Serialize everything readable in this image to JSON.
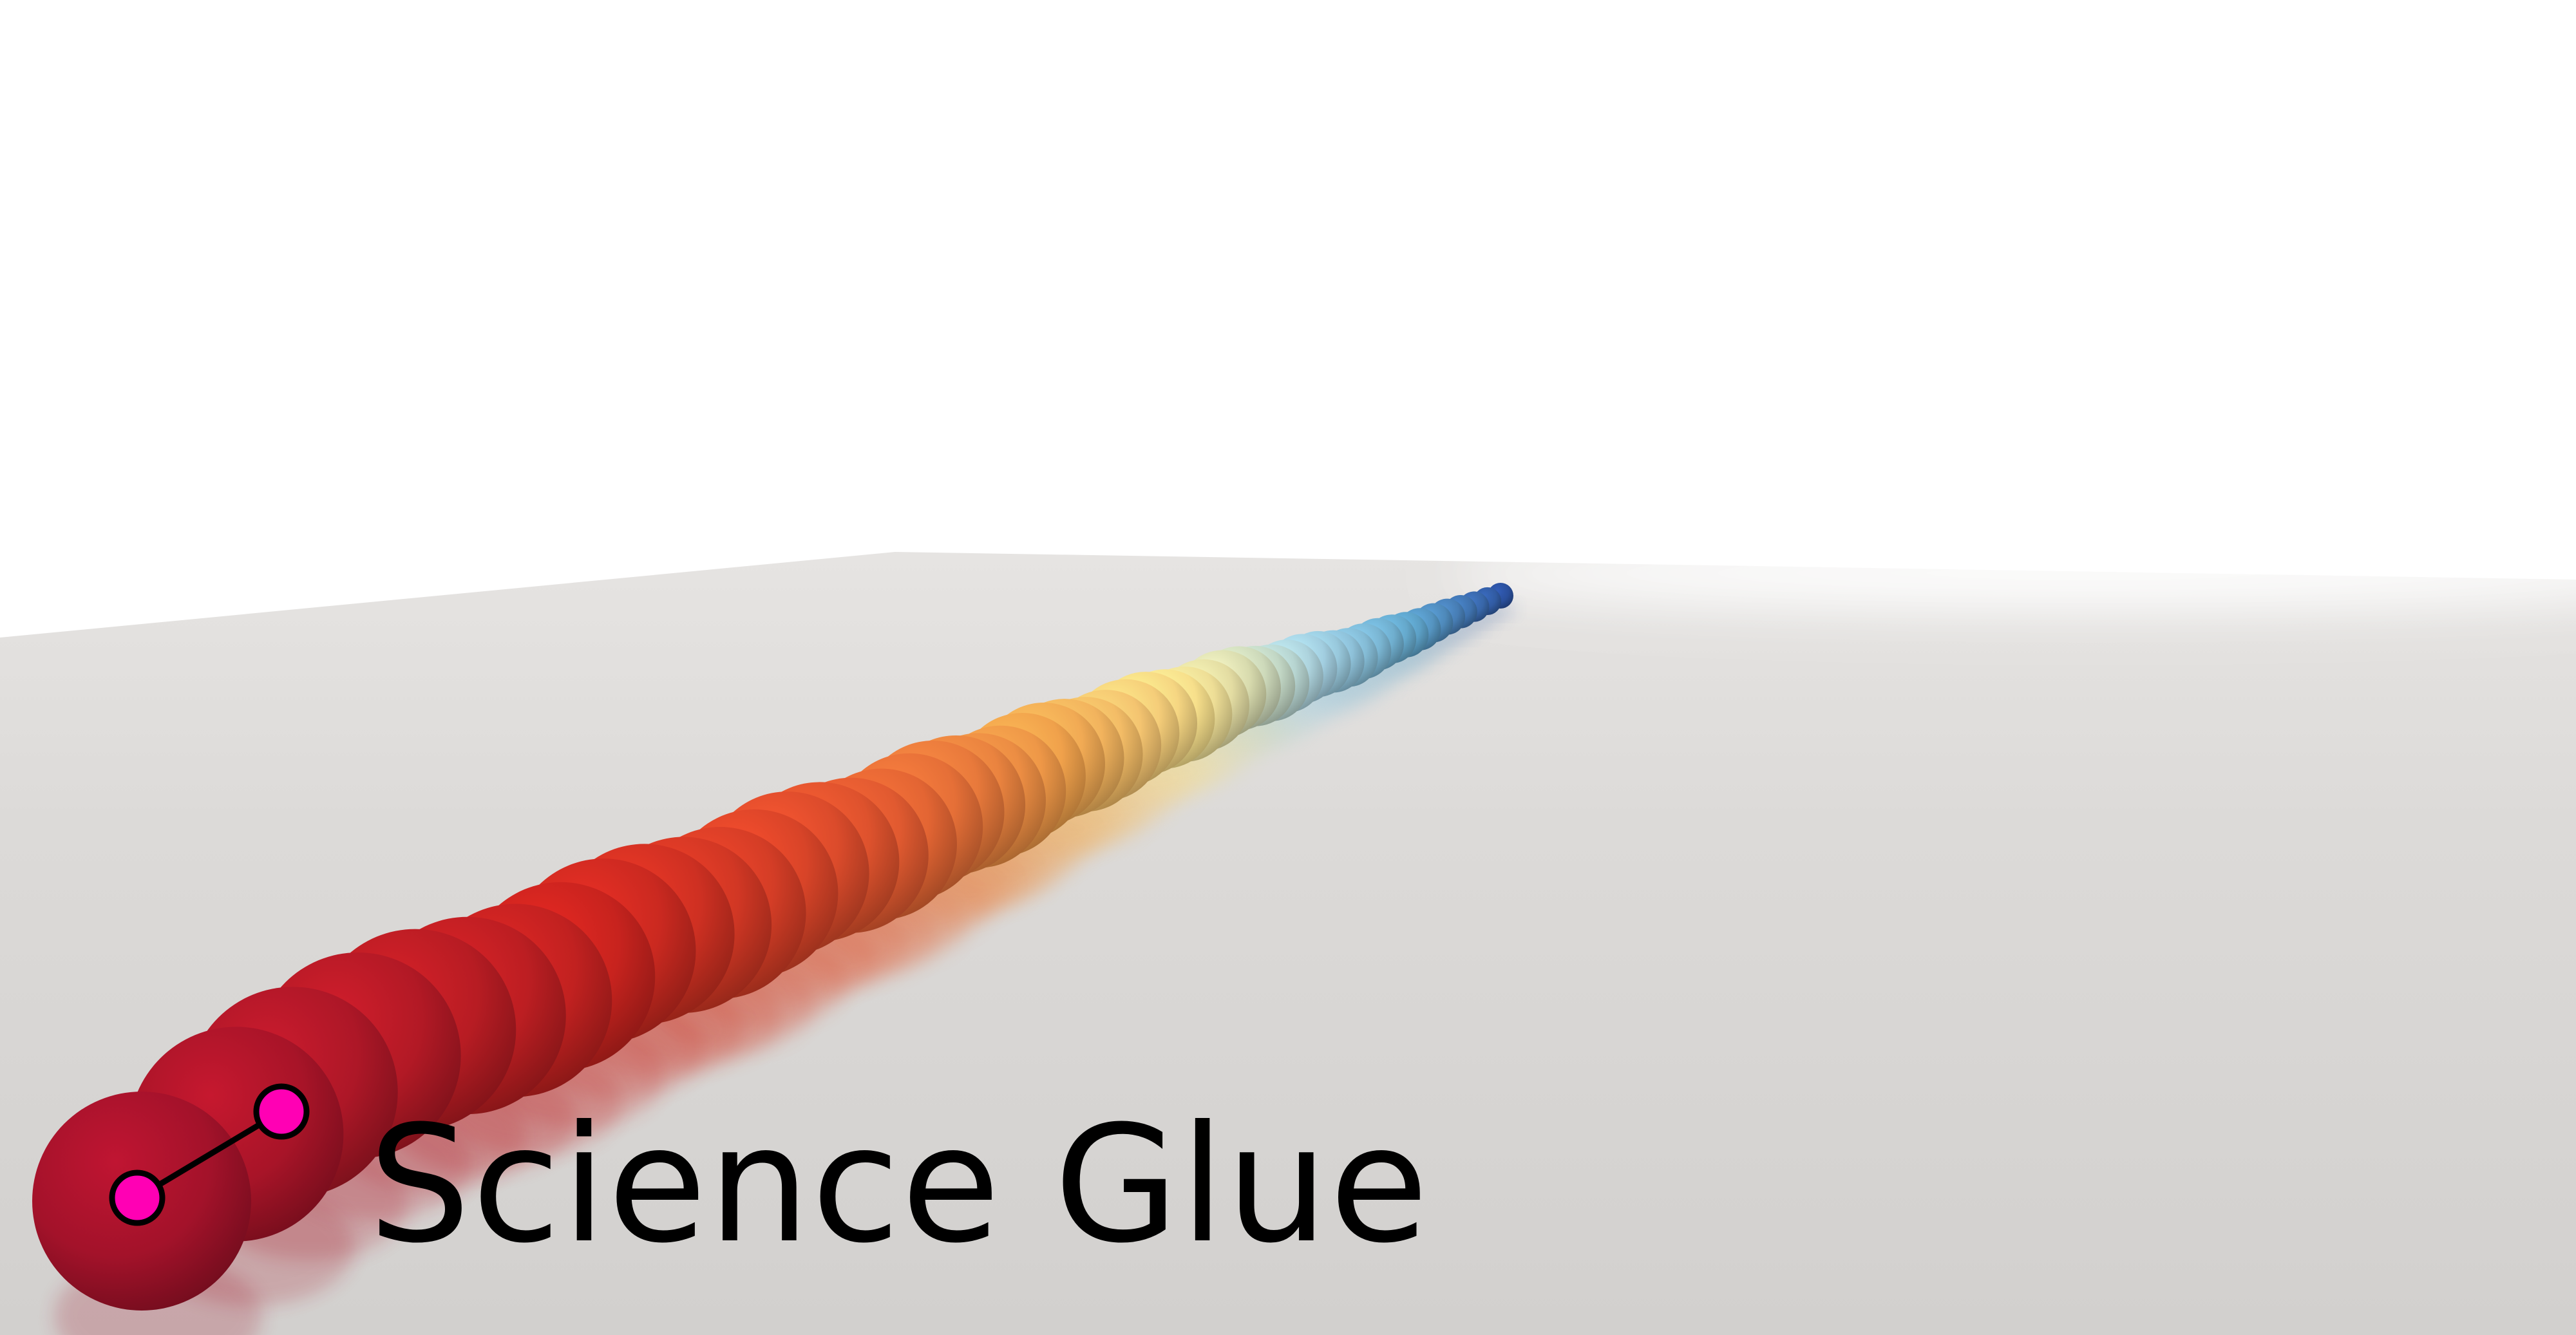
{
  "brand": {
    "title": "Science Glue",
    "logo_icon": "molecule-bond-icon",
    "logo_color": "#ff00b4"
  },
  "scene": {
    "subject": "bead-chain",
    "bead_count": 52,
    "gradient_stops": [
      "#a3122a",
      "#c8241e",
      "#e0562e",
      "#f0a04a",
      "#f7e08c",
      "#a8d2e2",
      "#5ea3c8",
      "#2a4f9c"
    ],
    "floor_color": "#d6d4d2",
    "sky_color": "#ffffff"
  }
}
